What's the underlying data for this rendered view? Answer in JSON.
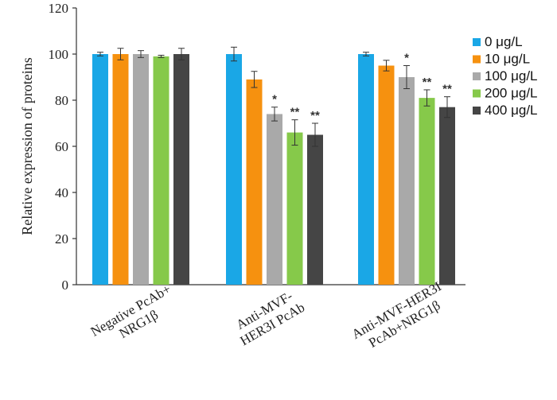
{
  "chart_data": {
    "type": "bar",
    "title": "",
    "ylabel": "Relative expression of proteins",
    "xlabel": "",
    "ylim": [
      0,
      120
    ],
    "yticks": [
      0,
      20,
      40,
      60,
      80,
      100,
      120
    ],
    "grid": false,
    "legend_position": "right",
    "categories": [
      [
        "Negative PcAb+",
        "NRG1β"
      ],
      [
        "Anti-MVF-",
        "HER3I PcAb"
      ],
      [
        "Anti-MVF-HER3I",
        "PcAb+NRG1β"
      ]
    ],
    "series": [
      {
        "name": "0 μg/L",
        "color": "#1aa7e6",
        "values": [
          100,
          100,
          100
        ],
        "errors": [
          0.8,
          3.0,
          0.8
        ],
        "sig": [
          "",
          "",
          ""
        ]
      },
      {
        "name": "10 μg/L",
        "color": "#f6910f",
        "values": [
          100,
          89,
          95
        ],
        "errors": [
          2.5,
          3.5,
          2.3
        ],
        "sig": [
          "",
          "",
          ""
        ]
      },
      {
        "name": "100 μg/L",
        "color": "#a9a9a9",
        "values": [
          100,
          74,
          90
        ],
        "errors": [
          1.5,
          3.0,
          5.0
        ],
        "sig": [
          "",
          "*",
          "*"
        ]
      },
      {
        "name": "200 μg/L",
        "color": "#86c94a",
        "values": [
          99,
          66,
          81
        ],
        "errors": [
          0.5,
          5.5,
          3.5
        ],
        "sig": [
          "",
          "**",
          "**"
        ]
      },
      {
        "name": "400 μg/L",
        "color": "#454545",
        "values": [
          100,
          65,
          77
        ],
        "errors": [
          2.5,
          5.0,
          4.5
        ],
        "sig": [
          "",
          "**",
          "**"
        ]
      }
    ]
  }
}
